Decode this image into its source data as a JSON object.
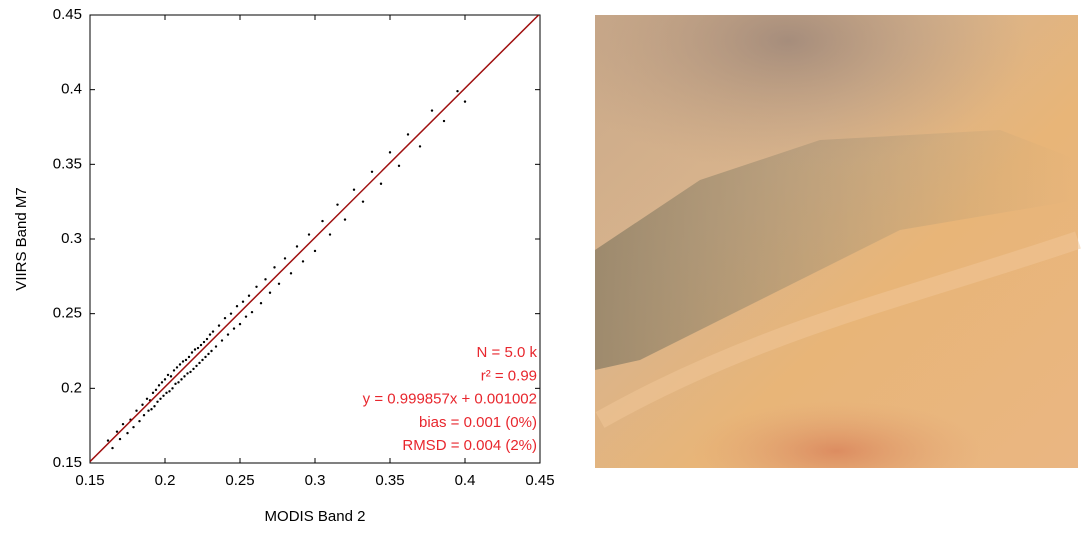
{
  "chart_data": {
    "type": "scatter",
    "xlabel": "MODIS Band 2",
    "ylabel": "VIIRS Band M7",
    "xlim": [
      0.15,
      0.45
    ],
    "ylim": [
      0.15,
      0.45
    ],
    "xticks": [
      0.15,
      0.2,
      0.25,
      0.3,
      0.35,
      0.4,
      0.45
    ],
    "yticks": [
      0.15,
      0.2,
      0.25,
      0.3,
      0.35,
      0.4,
      0.45
    ],
    "color": "#000000",
    "x": [
      0.162,
      0.165,
      0.168,
      0.17,
      0.172,
      0.175,
      0.177,
      0.179,
      0.181,
      0.183,
      0.185,
      0.186,
      0.188,
      0.189,
      0.19,
      0.191,
      0.192,
      0.193,
      0.194,
      0.195,
      0.196,
      0.197,
      0.198,
      0.199,
      0.2,
      0.201,
      0.202,
      0.203,
      0.204,
      0.205,
      0.206,
      0.207,
      0.208,
      0.209,
      0.21,
      0.211,
      0.212,
      0.213,
      0.214,
      0.215,
      0.216,
      0.217,
      0.218,
      0.219,
      0.22,
      0.221,
      0.222,
      0.223,
      0.224,
      0.225,
      0.226,
      0.227,
      0.228,
      0.229,
      0.23,
      0.231,
      0.232,
      0.234,
      0.236,
      0.238,
      0.24,
      0.242,
      0.244,
      0.246,
      0.248,
      0.25,
      0.252,
      0.254,
      0.256,
      0.258,
      0.261,
      0.264,
      0.267,
      0.27,
      0.273,
      0.276,
      0.28,
      0.284,
      0.288,
      0.292,
      0.296,
      0.3,
      0.305,
      0.31,
      0.315,
      0.32,
      0.326,
      0.332,
      0.338,
      0.344,
      0.35,
      0.356,
      0.362,
      0.37,
      0.378,
      0.386,
      0.395,
      0.4
    ],
    "y": [
      0.165,
      0.16,
      0.171,
      0.166,
      0.176,
      0.17,
      0.179,
      0.174,
      0.185,
      0.178,
      0.189,
      0.182,
      0.193,
      0.185,
      0.192,
      0.186,
      0.197,
      0.188,
      0.199,
      0.191,
      0.202,
      0.193,
      0.204,
      0.195,
      0.206,
      0.197,
      0.209,
      0.198,
      0.208,
      0.2,
      0.212,
      0.203,
      0.214,
      0.204,
      0.216,
      0.206,
      0.218,
      0.208,
      0.219,
      0.21,
      0.221,
      0.211,
      0.224,
      0.213,
      0.226,
      0.215,
      0.227,
      0.217,
      0.229,
      0.219,
      0.231,
      0.221,
      0.233,
      0.223,
      0.236,
      0.225,
      0.238,
      0.228,
      0.242,
      0.232,
      0.247,
      0.236,
      0.25,
      0.24,
      0.255,
      0.243,
      0.258,
      0.248,
      0.262,
      0.251,
      0.268,
      0.257,
      0.273,
      0.264,
      0.281,
      0.27,
      0.287,
      0.277,
      0.295,
      0.285,
      0.303,
      0.292,
      0.312,
      0.303,
      0.323,
      0.313,
      0.333,
      0.325,
      0.345,
      0.337,
      0.358,
      0.349,
      0.37,
      0.362,
      0.386,
      0.379,
      0.399,
      0.392
    ],
    "fit_line": {
      "x": [
        0.15,
        0.45
      ],
      "y": [
        0.150981,
        0.450938
      ],
      "color": "#a01010"
    },
    "annotation_color": "#e8262d",
    "annotations": [
      "N = 5.0 k",
      "r² = 0.99",
      "y = 0.999857x + 0.001002",
      "bias = 0.001 (0%)",
      "RMSD = 0.004 (2%)"
    ]
  }
}
